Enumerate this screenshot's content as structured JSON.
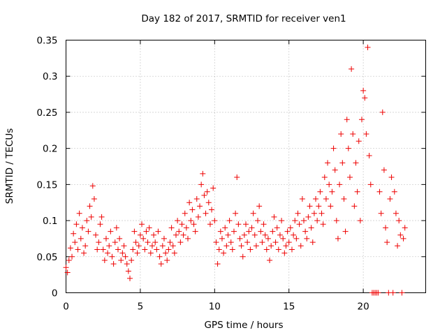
{
  "chart_data": {
    "type": "scatter",
    "title": "Day 182 of 2017, SRMTID for receiver ven1",
    "xlabel": "GPS time / hours",
    "ylabel": "SRMTID / TECUs",
    "xlim": [
      0,
      24.2
    ],
    "ylim": [
      0,
      0.35
    ],
    "xticks": [
      0,
      5,
      10,
      15,
      20
    ],
    "yticks": [
      0,
      0.05,
      0.1,
      0.15,
      0.2,
      0.25,
      0.3,
      0.35
    ],
    "xtick_labels": [
      "0",
      "5",
      "10",
      "15",
      "20"
    ],
    "ytick_labels": [
      "0",
      "0.05",
      "0.1",
      "0.15",
      "0.2",
      "0.25",
      "0.3",
      "0.35"
    ],
    "grid": true,
    "marker": "+",
    "color": "#ee0000",
    "series": [
      {
        "name": "SRMTID",
        "points": [
          [
            0.0,
            0.035
          ],
          [
            0.1,
            0.028
          ],
          [
            0.2,
            0.045
          ],
          [
            0.3,
            0.062
          ],
          [
            0.4,
            0.05
          ],
          [
            0.5,
            0.082
          ],
          [
            0.6,
            0.07
          ],
          [
            0.7,
            0.095
          ],
          [
            0.8,
            0.06
          ],
          [
            0.9,
            0.11
          ],
          [
            1.0,
            0.075
          ],
          [
            1.1,
            0.09
          ],
          [
            1.2,
            0.055
          ],
          [
            1.3,
            0.065
          ],
          [
            1.4,
            0.1
          ],
          [
            1.5,
            0.085
          ],
          [
            1.6,
            0.12
          ],
          [
            1.7,
            0.105
          ],
          [
            1.8,
            0.148
          ],
          [
            1.9,
            0.13
          ],
          [
            2.0,
            0.08
          ],
          [
            2.1,
            0.06
          ],
          [
            2.2,
            0.07
          ],
          [
            2.3,
            0.095
          ],
          [
            2.4,
            0.105
          ],
          [
            2.5,
            0.06
          ],
          [
            2.6,
            0.045
          ],
          [
            2.7,
            0.075
          ],
          [
            2.8,
            0.055
          ],
          [
            2.9,
            0.065
          ],
          [
            3.0,
            0.085
          ],
          [
            3.1,
            0.05
          ],
          [
            3.2,
            0.04
          ],
          [
            3.3,
            0.07
          ],
          [
            3.4,
            0.09
          ],
          [
            3.5,
            0.06
          ],
          [
            3.6,
            0.075
          ],
          [
            3.7,
            0.045
          ],
          [
            3.8,
            0.055
          ],
          [
            3.9,
            0.065
          ],
          [
            4.0,
            0.05
          ],
          [
            4.1,
            0.04
          ],
          [
            4.2,
            0.03
          ],
          [
            4.3,
            0.02
          ],
          [
            4.4,
            0.045
          ],
          [
            4.5,
            0.06
          ],
          [
            4.6,
            0.085
          ],
          [
            4.7,
            0.07
          ],
          [
            4.8,
            0.055
          ],
          [
            4.9,
            0.065
          ],
          [
            5.0,
            0.08
          ],
          [
            5.1,
            0.095
          ],
          [
            5.2,
            0.075
          ],
          [
            5.3,
            0.06
          ],
          [
            5.4,
            0.085
          ],
          [
            5.5,
            0.07
          ],
          [
            5.6,
            0.09
          ],
          [
            5.7,
            0.055
          ],
          [
            5.8,
            0.065
          ],
          [
            5.9,
            0.08
          ],
          [
            6.0,
            0.07
          ],
          [
            6.1,
            0.06
          ],
          [
            6.2,
            0.085
          ],
          [
            6.3,
            0.05
          ],
          [
            6.4,
            0.04
          ],
          [
            6.5,
            0.065
          ],
          [
            6.6,
            0.075
          ],
          [
            6.7,
            0.055
          ],
          [
            6.8,
            0.045
          ],
          [
            6.9,
            0.06
          ],
          [
            7.0,
            0.07
          ],
          [
            7.1,
            0.09
          ],
          [
            7.2,
            0.065
          ],
          [
            7.3,
            0.055
          ],
          [
            7.4,
            0.08
          ],
          [
            7.5,
            0.1
          ],
          [
            7.6,
            0.085
          ],
          [
            7.7,
            0.07
          ],
          [
            7.8,
            0.095
          ],
          [
            7.9,
            0.08
          ],
          [
            8.0,
            0.11
          ],
          [
            8.1,
            0.09
          ],
          [
            8.2,
            0.075
          ],
          [
            8.3,
            0.125
          ],
          [
            8.4,
            0.1
          ],
          [
            8.5,
            0.115
          ],
          [
            8.6,
            0.095
          ],
          [
            8.7,
            0.085
          ],
          [
            8.8,
            0.13
          ],
          [
            8.9,
            0.105
          ],
          [
            9.0,
            0.12
          ],
          [
            9.1,
            0.15
          ],
          [
            9.2,
            0.165
          ],
          [
            9.3,
            0.135
          ],
          [
            9.4,
            0.11
          ],
          [
            9.5,
            0.14
          ],
          [
            9.6,
            0.125
          ],
          [
            9.7,
            0.095
          ],
          [
            9.8,
            0.115
          ],
          [
            9.9,
            0.145
          ],
          [
            10.0,
            0.1
          ],
          [
            10.1,
            0.07
          ],
          [
            10.2,
            0.04
          ],
          [
            10.3,
            0.06
          ],
          [
            10.4,
            0.085
          ],
          [
            10.5,
            0.075
          ],
          [
            10.6,
            0.055
          ],
          [
            10.7,
            0.09
          ],
          [
            10.8,
            0.065
          ],
          [
            10.9,
            0.08
          ],
          [
            11.0,
            0.1
          ],
          [
            11.1,
            0.07
          ],
          [
            11.2,
            0.06
          ],
          [
            11.3,
            0.085
          ],
          [
            11.4,
            0.11
          ],
          [
            11.5,
            0.16
          ],
          [
            11.6,
            0.095
          ],
          [
            11.7,
            0.075
          ],
          [
            11.8,
            0.065
          ],
          [
            11.9,
            0.05
          ],
          [
            12.0,
            0.08
          ],
          [
            12.1,
            0.095
          ],
          [
            12.2,
            0.07
          ],
          [
            12.3,
            0.085
          ],
          [
            12.4,
            0.06
          ],
          [
            12.5,
            0.09
          ],
          [
            12.6,
            0.11
          ],
          [
            12.7,
            0.08
          ],
          [
            12.8,
            0.065
          ],
          [
            12.9,
            0.1
          ],
          [
            13.0,
            0.12
          ],
          [
            13.1,
            0.085
          ],
          [
            13.2,
            0.07
          ],
          [
            13.3,
            0.095
          ],
          [
            13.4,
            0.08
          ],
          [
            13.5,
            0.06
          ],
          [
            13.6,
            0.075
          ],
          [
            13.7,
            0.045
          ],
          [
            13.8,
            0.065
          ],
          [
            13.9,
            0.085
          ],
          [
            14.0,
            0.105
          ],
          [
            14.1,
            0.07
          ],
          [
            14.2,
            0.09
          ],
          [
            14.3,
            0.06
          ],
          [
            14.4,
            0.08
          ],
          [
            14.5,
            0.1
          ],
          [
            14.6,
            0.075
          ],
          [
            14.7,
            0.055
          ],
          [
            14.8,
            0.065
          ],
          [
            14.9,
            0.085
          ],
          [
            15.0,
            0.07
          ],
          [
            15.1,
            0.09
          ],
          [
            15.2,
            0.06
          ],
          [
            15.3,
            0.08
          ],
          [
            15.4,
            0.1
          ],
          [
            15.5,
            0.075
          ],
          [
            15.6,
            0.11
          ],
          [
            15.7,
            0.095
          ],
          [
            15.8,
            0.065
          ],
          [
            15.9,
            0.13
          ],
          [
            16.0,
            0.1
          ],
          [
            16.1,
            0.085
          ],
          [
            16.2,
            0.075
          ],
          [
            16.3,
            0.105
          ],
          [
            16.4,
            0.12
          ],
          [
            16.5,
            0.09
          ],
          [
            16.6,
            0.07
          ],
          [
            16.7,
            0.11
          ],
          [
            16.8,
            0.13
          ],
          [
            16.9,
            0.1
          ],
          [
            17.0,
            0.12
          ],
          [
            17.1,
            0.14
          ],
          [
            17.2,
            0.11
          ],
          [
            17.3,
            0.095
          ],
          [
            17.4,
            0.16
          ],
          [
            17.5,
            0.13
          ],
          [
            17.6,
            0.18
          ],
          [
            17.7,
            0.15
          ],
          [
            17.8,
            0.12
          ],
          [
            17.9,
            0.14
          ],
          [
            18.0,
            0.2
          ],
          [
            18.1,
            0.17
          ],
          [
            18.2,
            0.1
          ],
          [
            18.3,
            0.075
          ],
          [
            18.4,
            0.15
          ],
          [
            18.5,
            0.22
          ],
          [
            18.6,
            0.18
          ],
          [
            18.7,
            0.13
          ],
          [
            18.8,
            0.085
          ],
          [
            18.9,
            0.24
          ],
          [
            19.0,
            0.2
          ],
          [
            19.1,
            0.16
          ],
          [
            19.2,
            0.31
          ],
          [
            19.3,
            0.22
          ],
          [
            19.4,
            0.12
          ],
          [
            19.5,
            0.18
          ],
          [
            19.6,
            0.14
          ],
          [
            19.7,
            0.21
          ],
          [
            19.8,
            0.1
          ],
          [
            19.9,
            0.24
          ],
          [
            20.0,
            0.28
          ],
          [
            20.1,
            0.27
          ],
          [
            20.2,
            0.22
          ],
          [
            20.3,
            0.34
          ],
          [
            20.4,
            0.19
          ],
          [
            20.5,
            0.15
          ],
          [
            20.6,
            0.0
          ],
          [
            20.7,
            0.0
          ],
          [
            20.8,
            0.0
          ],
          [
            20.9,
            0.0
          ],
          [
            21.0,
            0.0
          ],
          [
            21.1,
            0.14
          ],
          [
            21.2,
            0.11
          ],
          [
            21.3,
            0.25
          ],
          [
            21.4,
            0.17
          ],
          [
            21.5,
            0.09
          ],
          [
            21.6,
            0.07
          ],
          [
            21.7,
            0.0
          ],
          [
            21.8,
            0.13
          ],
          [
            21.9,
            0.16
          ],
          [
            22.0,
            0.0
          ],
          [
            22.1,
            0.14
          ],
          [
            22.2,
            0.11
          ],
          [
            22.3,
            0.065
          ],
          [
            22.4,
            0.1
          ],
          [
            22.5,
            0.08
          ],
          [
            22.6,
            0.0
          ],
          [
            22.7,
            0.075
          ],
          [
            22.8,
            0.09
          ]
        ]
      }
    ]
  }
}
